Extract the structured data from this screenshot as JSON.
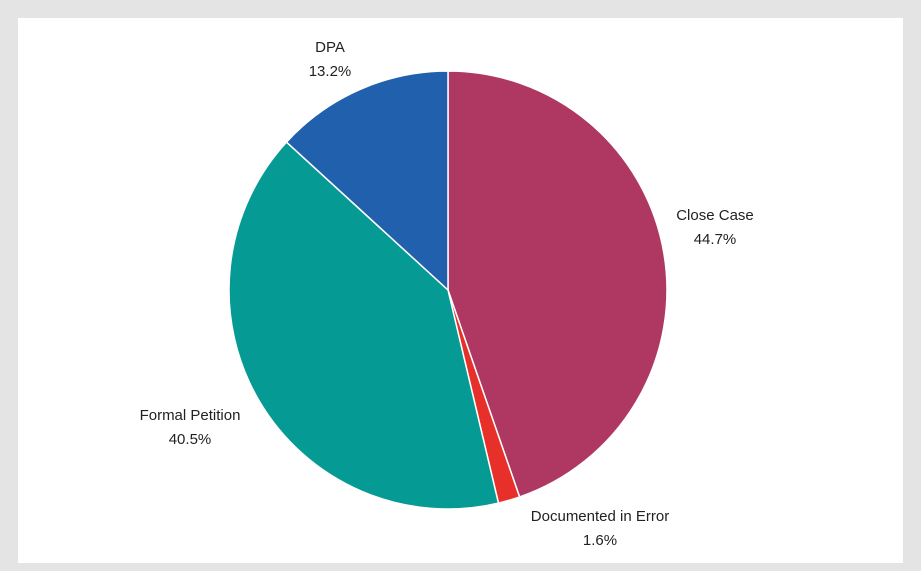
{
  "chart_data": {
    "type": "pie",
    "categories": [
      "Close Case",
      "Documented in Error",
      "Formal Petition",
      "DPA"
    ],
    "values": [
      44.7,
      1.6,
      40.5,
      13.2
    ],
    "value_labels": [
      "44.7%",
      "1.6%",
      "40.5%",
      "13.2%"
    ],
    "colors": [
      "#ae3862",
      "#e8302a",
      "#069a94",
      "#2160ad"
    ]
  }
}
